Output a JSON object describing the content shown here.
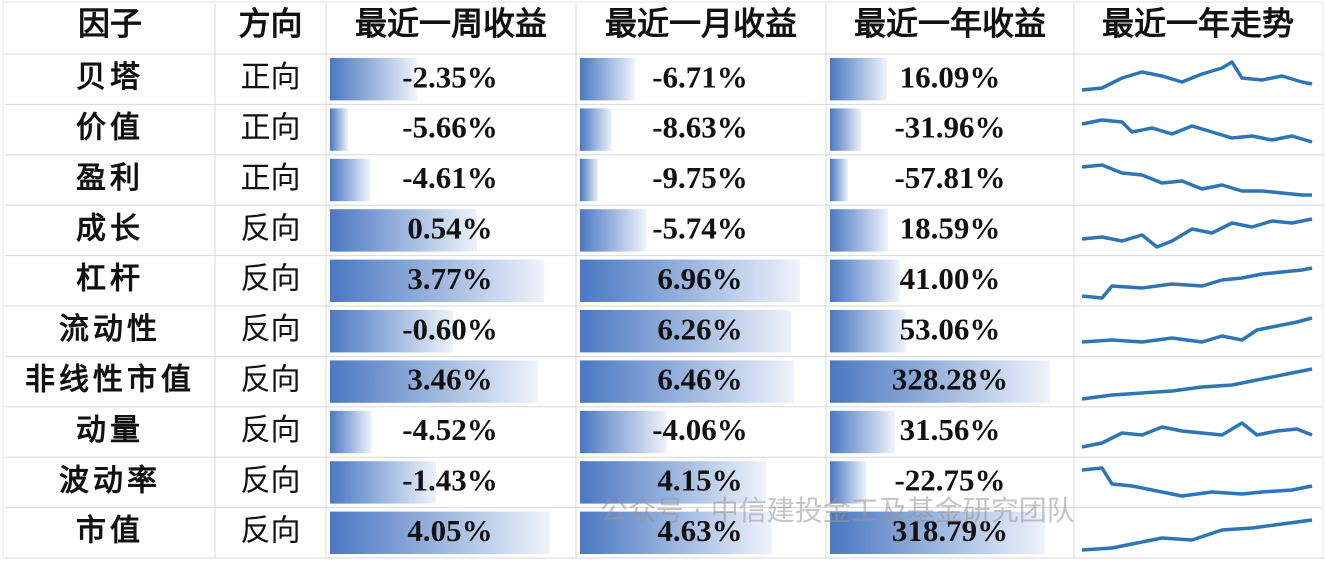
{
  "table": {
    "header": [
      "因子",
      "方向",
      "最近一周收益",
      "最近一月收益",
      "最近一年收益",
      "最近一年走势"
    ],
    "rows": [
      [
        "贝塔",
        "正向",
        "-2.35%",
        "-6.71%",
        "16.09%"
      ],
      [
        "价值",
        "正向",
        "-5.66%",
        "-8.63%",
        "-31.96%"
      ],
      [
        "盈利",
        "正向",
        "-4.61%",
        "-9.75%",
        "-57.81%"
      ],
      [
        "成长",
        "反向",
        "0.54%",
        "-5.74%",
        "18.59%"
      ],
      [
        "杠杆",
        "反向",
        "3.77%",
        "6.96%",
        "41.00%"
      ],
      [
        "流动性",
        "反向",
        "-0.60%",
        "6.26%",
        "53.06%"
      ],
      [
        "非线性市值",
        "反向",
        "3.46%",
        "6.46%",
        "328.28%"
      ],
      [
        "动量",
        "反向",
        "-4.52%",
        "-4.06%",
        "31.56%"
      ],
      [
        "波动率",
        "反向",
        "-1.43%",
        "4.15%",
        "-22.75%"
      ],
      [
        "市值",
        "反向",
        "4.05%",
        "4.63%",
        "318.79%"
      ]
    ]
  },
  "watermark": "公众号 · 中信建投金工及基金研究团队"
}
